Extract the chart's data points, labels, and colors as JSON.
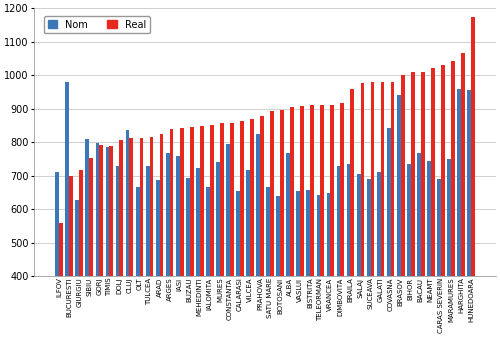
{
  "categories": [
    "ILFOV",
    "BUCURESTI",
    "GIURGIU",
    "SIBIU",
    "GORJ",
    "TIMIS",
    "DOLJ",
    "CLUJ",
    "OLT",
    "TULCEA",
    "ARAD",
    "ARGES",
    "IASI",
    "BUZAU",
    "MEHEDINTI",
    "IALOMITA",
    "MURES",
    "CONSTANTA",
    "CALARASI",
    "VILCEA",
    "PRAHOVA",
    "SATU MARE",
    "BOTOSANI",
    "ALBA",
    "VASLUI",
    "BISTRITA",
    "TELEORMAN",
    "VRANCEA",
    "DIMBOVITA",
    "BRAILA",
    "SALAJ",
    "SUCEAVA",
    "GALATI",
    "COVASNA",
    "BRASOV",
    "BIHOR",
    "BACAU",
    "NEAMT",
    "CARAS SEVERIN",
    "MARAMURES",
    "HARGHITA",
    "HUNEDOARA"
  ],
  "nom": [
    710,
    980,
    628,
    810,
    797,
    785,
    730,
    835,
    667,
    730,
    688,
    768,
    760,
    692,
    722,
    665,
    740,
    795,
    655,
    718,
    825,
    665,
    638,
    768,
    653,
    658,
    643,
    648,
    728,
    735,
    705,
    690,
    710,
    843,
    940,
    734,
    768,
    745,
    690,
    750,
    960,
    955
  ],
  "real": [
    560,
    700,
    717,
    752,
    792,
    790,
    808,
    812,
    813,
    815,
    825,
    838,
    842,
    844,
    848,
    850,
    857,
    858,
    862,
    868,
    878,
    893,
    897,
    905,
    907,
    910,
    912,
    912,
    918,
    960,
    977,
    980,
    981,
    981,
    1000,
    1008,
    1010,
    1022,
    1030,
    1043,
    1065,
    1175
  ],
  "nom_color": "#3b78b8",
  "real_color": "#e8271e",
  "ylim": [
    400,
    1200
  ],
  "yticks": [
    400,
    500,
    600,
    700,
    800,
    900,
    1000,
    1100,
    1200
  ],
  "grid_color": "#c8c8c8",
  "bg_color": "#ffffff",
  "legend_nom": "Nom",
  "legend_real": "Real"
}
